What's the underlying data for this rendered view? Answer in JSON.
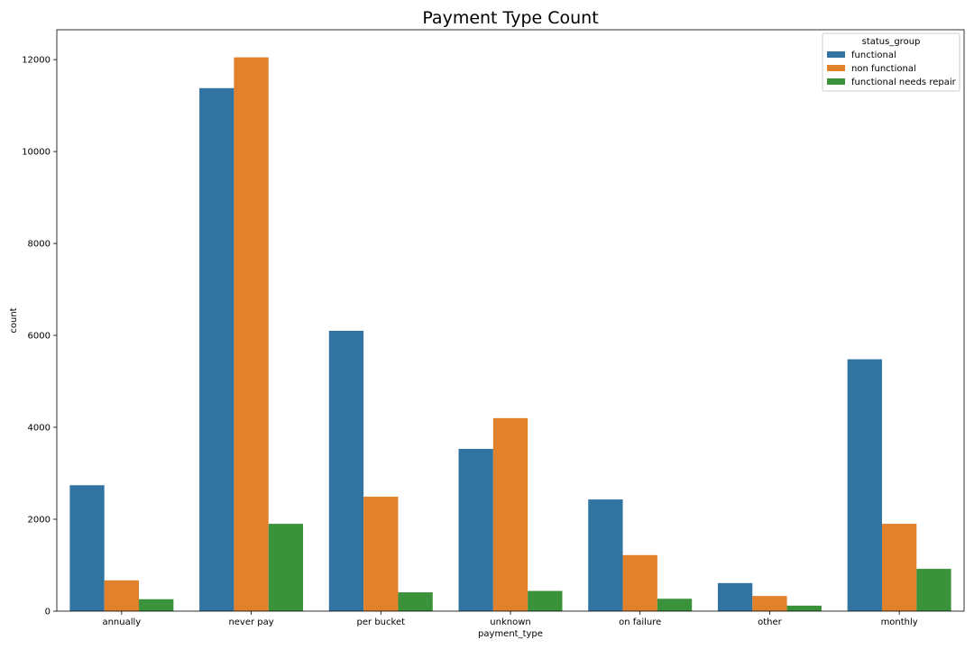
{
  "chart_data": {
    "type": "bar",
    "title": "Payment Type Count",
    "xlabel": "payment_type",
    "ylabel": "count",
    "ylim": [
      0,
      12650
    ],
    "yticks": [
      0,
      2000,
      4000,
      6000,
      8000,
      10000,
      12000
    ],
    "categories": [
      "annually",
      "never pay",
      "per bucket",
      "unknown",
      "on failure",
      "other",
      "monthly"
    ],
    "series": [
      {
        "name": "functional",
        "color": "#3274a1",
        "values": [
          2740,
          11380,
          6100,
          3530,
          2430,
          610,
          5480
        ]
      },
      {
        "name": "non functional",
        "color": "#e1812c",
        "values": [
          670,
          12050,
          2490,
          4200,
          1220,
          330,
          1900
        ]
      },
      {
        "name": "functional needs repair",
        "color": "#3a923a",
        "values": [
          260,
          1900,
          410,
          440,
          270,
          120,
          920
        ]
      }
    ],
    "legend": {
      "title": "status_group",
      "placement": "top-right"
    },
    "grid": false
  }
}
